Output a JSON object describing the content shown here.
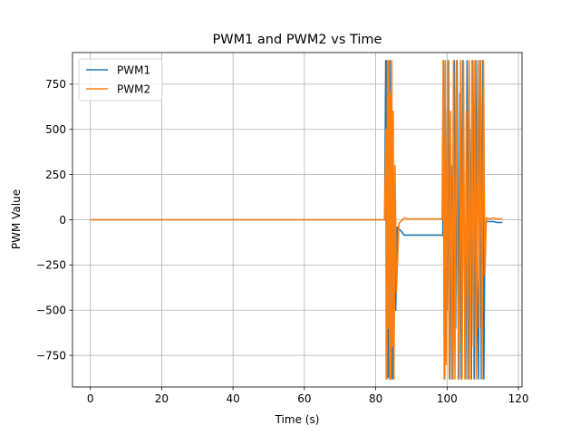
{
  "chart_data": {
    "type": "line",
    "title": "PWM1 and PWM2 vs Time",
    "xlabel": "Time (s)",
    "ylabel": "PWM Value",
    "xlim": [
      -5,
      121
    ],
    "ylim": [
      -925,
      925
    ],
    "xticks": [
      0,
      20,
      40,
      60,
      80,
      100,
      120
    ],
    "xtick_labels": [
      "0",
      "20",
      "40",
      "60",
      "80",
      "100",
      "120"
    ],
    "yticks": [
      -750,
      -500,
      -250,
      0,
      250,
      500,
      750
    ],
    "ytick_labels": [
      "−750",
      "−500",
      "−250",
      "0",
      "250",
      "500",
      "750"
    ],
    "grid": true,
    "legend_position": "upper-left",
    "series": [
      {
        "name": "PWM1",
        "color": "#1f77b4",
        "x": [
          0,
          20,
          40,
          60,
          82.5,
          82.8,
          83.0,
          83.2,
          83.4,
          83.6,
          83.8,
          84.0,
          84.2,
          84.4,
          84.6,
          84.8,
          85.0,
          85.3,
          85.6,
          86.0,
          87.0,
          88.0,
          89.0,
          90,
          95,
          98.8,
          99.0,
          99.3,
          99.6,
          100.0,
          100.4,
          100.8,
          101.2,
          101.6,
          102.0,
          102.4,
          102.8,
          103.2,
          103.6,
          104.0,
          104.4,
          104.8,
          105.2,
          105.6,
          106.0,
          106.4,
          106.8,
          107.2,
          107.6,
          108.0,
          108.4,
          108.8,
          109.2,
          109.6,
          110.0,
          110.3,
          110.6,
          111.0,
          112.0,
          113.0,
          114.0,
          115.5
        ],
        "y": [
          0,
          0,
          0,
          0,
          0,
          880,
          -880,
          880,
          -870,
          600,
          -880,
          880,
          -880,
          500,
          -880,
          400,
          -880,
          200,
          -500,
          -40,
          -60,
          -85,
          -85,
          -85,
          -85,
          -85,
          880,
          -880,
          600,
          -500,
          880,
          -880,
          300,
          -880,
          880,
          -600,
          880,
          -880,
          700,
          -880,
          880,
          -200,
          -880,
          880,
          -880,
          500,
          -880,
          880,
          -880,
          880,
          -300,
          -880,
          880,
          -880,
          880,
          -880,
          -20,
          -10,
          -10,
          -10,
          -15,
          -15
        ]
      },
      {
        "name": "PWM2",
        "color": "#ff7f0e",
        "x": [
          0,
          20,
          40,
          60,
          82.5,
          82.9,
          83.1,
          83.3,
          83.5,
          83.7,
          83.9,
          84.1,
          84.3,
          84.5,
          84.7,
          84.9,
          85.1,
          85.4,
          85.8,
          86.5,
          88.0,
          89.0,
          90,
          95,
          98.6,
          98.9,
          99.2,
          99.5,
          99.8,
          100.2,
          100.6,
          101.0,
          101.4,
          101.8,
          102.2,
          102.6,
          103.0,
          103.4,
          103.8,
          104.2,
          104.6,
          105.0,
          105.4,
          105.8,
          106.2,
          106.6,
          107.0,
          107.4,
          107.8,
          108.2,
          108.6,
          109.0,
          109.4,
          109.8,
          110.2,
          110.6,
          111.0,
          112.0,
          113.0,
          114.0,
          115.5
        ],
        "y": [
          0,
          0,
          0,
          0,
          0,
          500,
          -880,
          880,
          -600,
          880,
          -880,
          700,
          -880,
          880,
          -700,
          600,
          -880,
          300,
          -400,
          -20,
          10,
          5,
          5,
          5,
          5,
          880,
          -880,
          880,
          -800,
          880,
          -880,
          600,
          -880,
          880,
          -880,
          880,
          -400,
          -880,
          880,
          -880,
          880,
          -880,
          600,
          -880,
          880,
          -880,
          880,
          -700,
          880,
          -880,
          880,
          -600,
          880,
          -880,
          880,
          -300,
          10,
          5,
          10,
          5,
          5
        ]
      }
    ]
  }
}
